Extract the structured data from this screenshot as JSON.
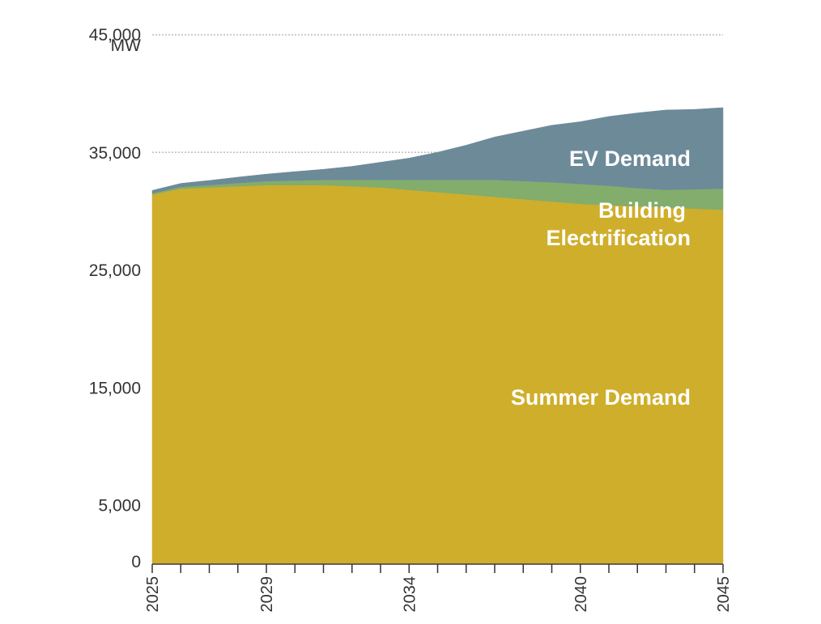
{
  "chart_data": {
    "type": "area",
    "stacked": true,
    "title": "",
    "xlabel": "",
    "ylabel": "",
    "y_unit": "MW",
    "ylim": [
      0,
      45000
    ],
    "x": [
      2025,
      2026,
      2027,
      2028,
      2029,
      2030,
      2031,
      2032,
      2033,
      2034,
      2035,
      2036,
      2037,
      2038,
      2039,
      2040,
      2041,
      2042,
      2043,
      2044,
      2045
    ],
    "x_ticks": [
      2025,
      2026,
      2027,
      2028,
      2029,
      2030,
      2031,
      2032,
      2033,
      2034,
      2035,
      2036,
      2037,
      2038,
      2039,
      2040,
      2041,
      2042,
      2043,
      2044,
      2045
    ],
    "x_tick_labels": [
      "2025",
      "2029",
      "2034",
      "2040",
      "2045"
    ],
    "y_tick_labels": [
      {
        "value": 45000,
        "label": "45,000"
      },
      {
        "value": 35000,
        "label": "35,000"
      },
      {
        "value": 25000,
        "label": "25,000"
      },
      {
        "value": 15000,
        "label": "15,000"
      },
      {
        "value": 5000,
        "label": "5,000"
      },
      {
        "value": 0,
        "label": "0"
      }
    ],
    "gridlines": [
      45000,
      35000
    ],
    "series": [
      {
        "name": "Summer Demand",
        "color": "#cfae2b",
        "values": [
          31400,
          31900,
          32000,
          32100,
          32200,
          32200,
          32200,
          32100,
          32000,
          31800,
          31600,
          31400,
          31200,
          31000,
          30800,
          30600,
          30500,
          30400,
          30300,
          30200,
          30100
        ]
      },
      {
        "name": "Building Electrification",
        "color": "#82ad6c",
        "values": [
          100,
          150,
          200,
          280,
          340,
          400,
          450,
          550,
          650,
          850,
          1050,
          1250,
          1450,
          1550,
          1650,
          1700,
          1650,
          1550,
          1500,
          1650,
          1800
        ]
      },
      {
        "name": "EV Demand",
        "color": "#6d8a99",
        "values": [
          250,
          300,
          400,
          500,
          600,
          750,
          900,
          1150,
          1500,
          1850,
          2350,
          2950,
          3650,
          4250,
          4850,
          5300,
          5900,
          6400,
          6800,
          6800,
          6900
        ]
      }
    ],
    "series_labels": [
      {
        "series": "EV Demand",
        "lines": [
          "EV Demand"
        ]
      },
      {
        "series": "Building Electrification",
        "lines": [
          "Building",
          "Electrification"
        ]
      },
      {
        "series": "Summer Demand",
        "lines": [
          "Summer Demand"
        ]
      }
    ]
  }
}
